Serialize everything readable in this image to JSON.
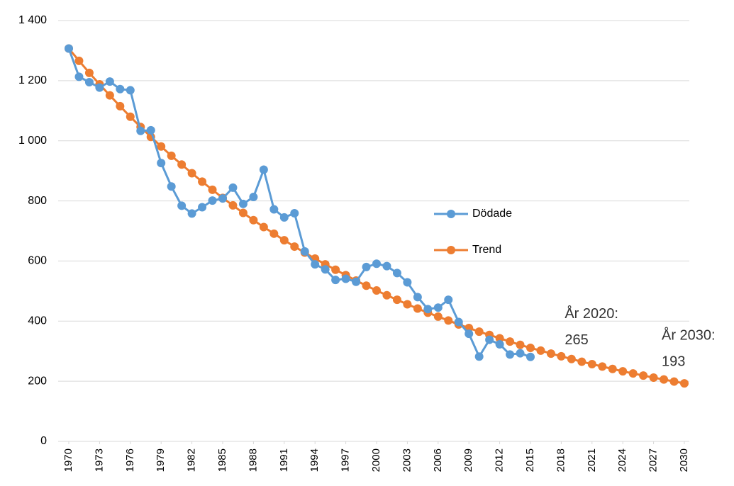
{
  "chart_data": {
    "type": "line",
    "x": [
      1970,
      1971,
      1972,
      1973,
      1974,
      1975,
      1976,
      1977,
      1978,
      1979,
      1980,
      1981,
      1982,
      1983,
      1984,
      1985,
      1986,
      1987,
      1988,
      1989,
      1990,
      1991,
      1992,
      1993,
      1994,
      1995,
      1996,
      1997,
      1998,
      1999,
      2000,
      2001,
      2002,
      2003,
      2004,
      2005,
      2006,
      2007,
      2008,
      2009,
      2010,
      2011,
      2012,
      2013,
      2014,
      2015,
      2016,
      2017,
      2018,
      2019,
      2020,
      2021,
      2022,
      2023,
      2024,
      2025,
      2026,
      2027,
      2028,
      2029,
      2030
    ],
    "xlim": [
      1970,
      2030
    ],
    "xticks": [
      1970,
      1973,
      1976,
      1979,
      1982,
      1985,
      1988,
      1991,
      1994,
      1997,
      2000,
      2003,
      2006,
      2009,
      2012,
      2015,
      2018,
      2021,
      2024,
      2027,
      2030
    ],
    "ylim": [
      0,
      1400
    ],
    "yticks": [
      0,
      200,
      400,
      600,
      800,
      {
        "value": 1000,
        "label": "1 000"
      },
      {
        "value": 1200,
        "label": "1 200"
      },
      {
        "value": 1400,
        "label": "1 400"
      }
    ],
    "grid": true,
    "legend": "right",
    "series": [
      {
        "name": "Trend",
        "color": "#ed7d31",
        "values": [
          1307,
          1266,
          1226,
          1188,
          1151,
          1115,
          1080,
          1046,
          1013,
          981,
          950,
          921,
          892,
          864,
          837,
          810,
          785,
          760,
          736,
          713,
          691,
          669,
          648,
          628,
          608,
          589,
          571,
          553,
          535,
          518,
          502,
          486,
          471,
          456,
          442,
          428,
          415,
          402,
          389,
          377,
          365,
          354,
          343,
          332,
          321,
          311,
          302,
          292,
          283,
          274,
          265,
          257,
          249,
          241,
          233,
          226,
          219,
          212,
          206,
          199,
          193
        ]
      },
      {
        "name": "Dödade",
        "color": "#5b9bd5",
        "values": [
          1307,
          1213,
          1195,
          1177,
          1197,
          1172,
          1168,
          1033,
          1035,
          926,
          848,
          784,
          758,
          779,
          801,
          808,
          844,
          790,
          813,
          904,
          772,
          745,
          759,
          632,
          589,
          572,
          537,
          541,
          531,
          580,
          591,
          583,
          560,
          529,
          480,
          440,
          445,
          471,
          397,
          358,
          282,
          338,
          323,
          289,
          293,
          281,
          null,
          null,
          null,
          null,
          null,
          null,
          null,
          null,
          null,
          null,
          null,
          null,
          null,
          null,
          null
        ]
      }
    ],
    "annotations": [
      [
        "År 2020:",
        "265"
      ],
      [
        "År 2030:",
        "193"
      ]
    ]
  }
}
